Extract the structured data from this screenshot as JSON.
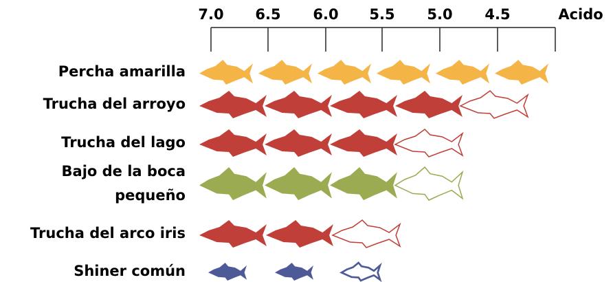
{
  "axis": {
    "ticks": [
      "7.0",
      "6.5",
      "6.0",
      "5.5",
      "5.0",
      "4.5",
      "Acido"
    ]
  },
  "species": [
    {
      "label": "Percha amarilla",
      "color": "#f4b446",
      "filled": 6,
      "outline": 0
    },
    {
      "label": "Trucha del arroyo",
      "color": "#c13f39",
      "filled": 4,
      "outline": 1
    },
    {
      "label": "Trucha del lago",
      "color": "#c13f39",
      "filled": 3,
      "outline": 1
    },
    {
      "label": [
        "Bajo de la boca",
        "pequeño"
      ],
      "color": "#9aab52",
      "filled": 3,
      "outline": 1
    },
    {
      "label": "Trucha del arco iris",
      "color": "#c13f39",
      "filled": 2,
      "outline": 1
    },
    {
      "label": "Shiner común",
      "color": "#4e5a98",
      "filled": 2,
      "outline": 1
    }
  ]
}
